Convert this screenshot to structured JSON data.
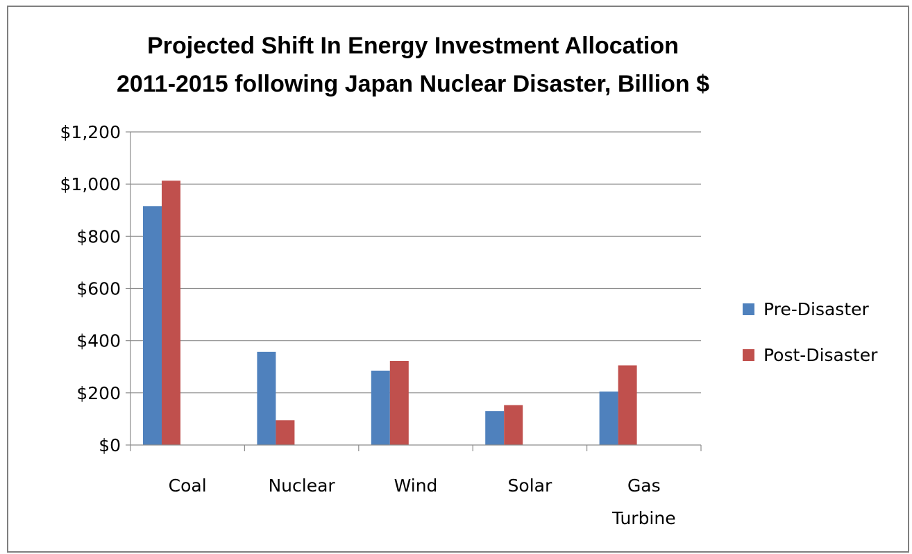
{
  "chart_data": {
    "type": "bar",
    "title": "Projected Shift In Energy Investment Allocation 2011-2015 following Japan Nuclear Disaster, Billion $",
    "title_lines": [
      "Projected Shift In Energy Investment Allocation",
      "2011-2015 following Japan  Nuclear Disaster, Billion $"
    ],
    "categories": [
      "Coal",
      "Nuclear",
      "Wind",
      "Solar",
      "Gas Turbine"
    ],
    "category_label_lines": [
      [
        "Coal"
      ],
      [
        "Nuclear"
      ],
      [
        "Wind"
      ],
      [
        "Solar"
      ],
      [
        "Gas",
        "Turbine"
      ]
    ],
    "series": [
      {
        "name": "Pre-Disaster",
        "color": "#4f81bd",
        "values": [
          915,
          357,
          285,
          130,
          205
        ]
      },
      {
        "name": "Post-Disaster",
        "color": "#c0504d",
        "values": [
          1013,
          95,
          322,
          153,
          305
        ]
      }
    ],
    "yticks": [
      "$0",
      "$200",
      "$400",
      "$600",
      "$800",
      "$1,000",
      "$1,200"
    ],
    "ylim": [
      0,
      1200
    ],
    "xlabel": "",
    "ylabel": "",
    "grid": true,
    "legend_position": "right"
  }
}
